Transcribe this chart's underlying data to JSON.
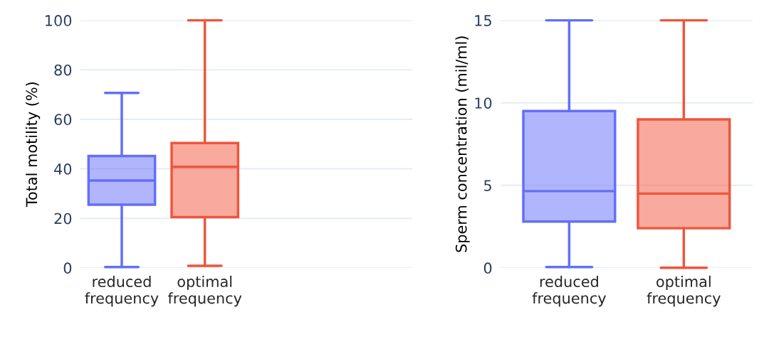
{
  "chart_data": [
    {
      "type": "box",
      "ylabel": "Total motility (%)",
      "categories": [
        "reduced\nfrequency",
        "optimal\nfrequency"
      ],
      "colors": [
        "#636efa",
        "#ef553b"
      ],
      "boxes": [
        {
          "low": 0.3,
          "q1": 25.5,
          "median": 35.3,
          "q3": 45.2,
          "high": 70.7
        },
        {
          "low": 0.8,
          "q1": 20.5,
          "median": 40.8,
          "q3": 50.4,
          "high": 100
        }
      ],
      "ylim": [
        0,
        100
      ],
      "yticks": [
        0,
        20,
        40,
        60,
        80,
        100
      ],
      "grid": "y"
    },
    {
      "type": "box",
      "ylabel": "Sperm concentration (mil/ml)",
      "categories": [
        "reduced\nfrequency",
        "optimal\nfrequency"
      ],
      "colors": [
        "#636efa",
        "#ef553b"
      ],
      "boxes": [
        {
          "low": 0.05,
          "q1": 2.8,
          "median": 4.65,
          "q3": 9.5,
          "high": 15
        },
        {
          "low": 0,
          "q1": 2.4,
          "median": 4.5,
          "q3": 9.0,
          "high": 15
        }
      ],
      "ylim": [
        0,
        15
      ],
      "yticks": [
        0,
        5,
        10,
        15
      ],
      "grid": "y"
    }
  ]
}
